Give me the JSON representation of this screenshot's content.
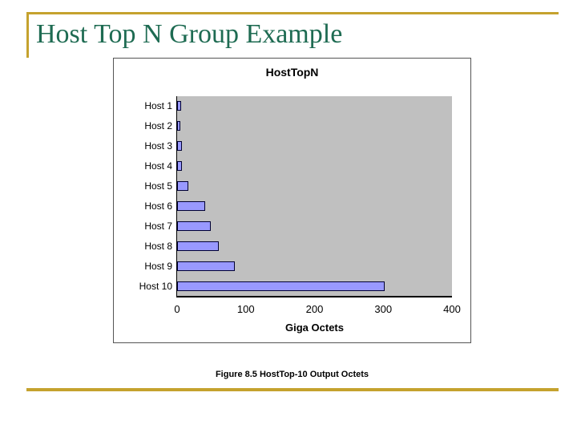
{
  "slide": {
    "title": "Host Top N Group Example",
    "caption": "Figure 8.5 HostTop-10 Output Octets",
    "colors": {
      "accent_gold": "#C5A22E",
      "title_green": "#1E6B52"
    }
  },
  "chart_data": {
    "type": "bar",
    "orientation": "horizontal",
    "title": "HostTopN",
    "categories": [
      "Host 1",
      "Host 2",
      "Host 3",
      "Host 4",
      "Host 5",
      "Host 6",
      "Host 7",
      "Host 8",
      "Host 9",
      "Host 10"
    ],
    "values": [
      3,
      2,
      5,
      5,
      14,
      38,
      47,
      58,
      82,
      300
    ],
    "xlabel": "Giga Octets",
    "x_ticks": [
      0,
      100,
      200,
      300,
      400
    ],
    "xlim": [
      0,
      400
    ],
    "grid": false,
    "legend": false,
    "plot_bg": "#C0C0C0",
    "bar_fill": "#9999FF",
    "bar_border": "#000033"
  }
}
